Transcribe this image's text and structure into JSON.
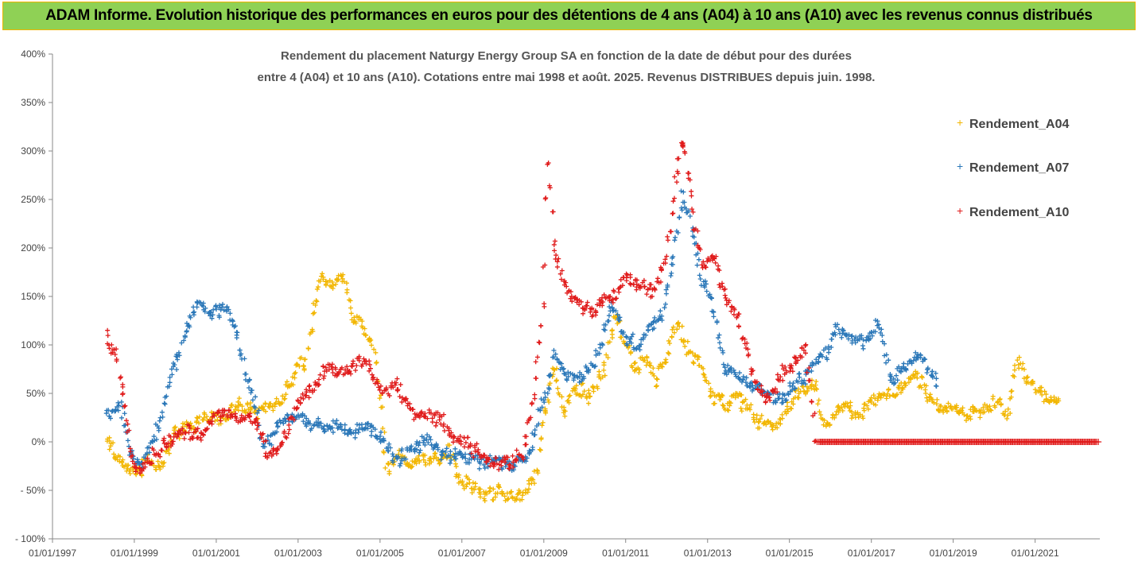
{
  "banner": {
    "title": "ADAM Informe. Evolution historique des performances en euros pour des détentions de 4 ans (A04) à 10 ans (A10) avec les revenus connus distribués"
  },
  "colors": {
    "banner_bg": "#8fd155",
    "banner_border": "#f0b400",
    "A04": "#f2b600",
    "A07": "#2a77b8",
    "A10": "#e01b1b"
  },
  "chart_data": {
    "type": "scatter",
    "title_lines": [
      "Rendement du placement Naturgy Energy Group SA en fonction de la date de début pour des durées",
      "entre 4 (A04) et 10 ans (A10). Cotations entre mai 1998 et août. 2025. Revenus DISTRIBUES depuis juin. 1998."
    ],
    "xlabel": "",
    "ylabel": "",
    "x_ticks": [
      "01/01/1997",
      "01/01/1999",
      "01/01/2001",
      "01/01/2003",
      "01/01/2005",
      "01/01/2007",
      "01/01/2009",
      "01/01/2011",
      "01/01/2013",
      "01/01/2015",
      "01/01/2017",
      "01/01/2019",
      "01/01/2021"
    ],
    "y_ticks": [
      "- 100%",
      "- 50%",
      "0%",
      "50%",
      "100%",
      "150%",
      "200%",
      "250%",
      "300%",
      "350%",
      "400%"
    ],
    "xlim": [
      "1997-01-01",
      "2022-08-01"
    ],
    "ylim": [
      -100,
      400
    ],
    "y_unit": "%",
    "grid": false,
    "legend_position": "right",
    "marker": "+",
    "series": [
      {
        "name": "Rendement_A04",
        "x_start": "1998-05-01",
        "x_end": "2021-08-15",
        "points": [
          [
            "1998-05-01",
            5
          ],
          [
            "1998-08-01",
            -20
          ],
          [
            "1998-11-01",
            -25
          ],
          [
            "1999-01-01",
            -35
          ],
          [
            "1999-05-01",
            -15
          ],
          [
            "1999-09-01",
            -25
          ],
          [
            "2000-01-01",
            10
          ],
          [
            "2000-06-01",
            15
          ],
          [
            "2001-01-01",
            25
          ],
          [
            "2001-06-01",
            35
          ],
          [
            "2002-01-01",
            30
          ],
          [
            "2002-06-01",
            40
          ],
          [
            "2002-11-01",
            60
          ],
          [
            "2003-01-01",
            85
          ],
          [
            "2003-03-01",
            70
          ],
          [
            "2003-05-01",
            120
          ],
          [
            "2003-08-01",
            170
          ],
          [
            "2003-11-01",
            160
          ],
          [
            "2004-02-01",
            175
          ],
          [
            "2004-05-01",
            130
          ],
          [
            "2004-08-01",
            115
          ],
          [
            "2004-11-01",
            100
          ],
          [
            "2005-01-01",
            40
          ],
          [
            "2005-03-01",
            -30
          ],
          [
            "2005-06-01",
            -15
          ],
          [
            "2005-09-01",
            -25
          ],
          [
            "2006-01-01",
            -20
          ],
          [
            "2006-06-01",
            -20
          ],
          [
            "2006-10-01",
            -10
          ],
          [
            "2007-01-01",
            -40
          ],
          [
            "2007-06-01",
            -50
          ],
          [
            "2007-10-01",
            -50
          ],
          [
            "2008-03-01",
            -55
          ],
          [
            "2008-08-01",
            -58
          ],
          [
            "2008-11-01",
            -30
          ],
          [
            "2009-01-01",
            25
          ],
          [
            "2009-04-01",
            80
          ],
          [
            "2009-07-01",
            30
          ],
          [
            "2009-10-01",
            60
          ],
          [
            "2010-03-01",
            40
          ],
          [
            "2010-06-01",
            70
          ],
          [
            "2010-10-01",
            125
          ],
          [
            "2011-01-01",
            100
          ],
          [
            "2011-04-01",
            80
          ],
          [
            "2011-07-01",
            85
          ],
          [
            "2011-10-01",
            60
          ],
          [
            "2012-01-01",
            90
          ],
          [
            "2012-04-01",
            120
          ],
          [
            "2012-07-01",
            100
          ],
          [
            "2012-10-01",
            85
          ],
          [
            "2013-01-01",
            60
          ],
          [
            "2013-03-01",
            45
          ],
          [
            "2013-07-01",
            40
          ],
          [
            "2013-10-01",
            50
          ],
          [
            "2014-01-01",
            30
          ],
          [
            "2014-06-01",
            20
          ],
          [
            "2014-10-01",
            15
          ],
          [
            "2015-01-01",
            40
          ],
          [
            "2015-04-01",
            50
          ],
          [
            "2015-07-01",
            55
          ],
          [
            "2015-09-01",
            60
          ],
          [
            "2015-11-01",
            20
          ],
          [
            "2016-03-01",
            30
          ],
          [
            "2016-06-01",
            35
          ],
          [
            "2016-10-01",
            20
          ],
          [
            "2017-01-01",
            40
          ],
          [
            "2017-05-01",
            45
          ],
          [
            "2017-09-01",
            50
          ],
          [
            "2018-01-01",
            65
          ],
          [
            "2018-03-01",
            60
          ],
          [
            "2018-06-01",
            45
          ],
          [
            "2018-10-01",
            30
          ],
          [
            "2019-02-01",
            35
          ],
          [
            "2019-06-01",
            30
          ],
          [
            "2019-10-01",
            35
          ],
          [
            "2020-03-01",
            40
          ],
          [
            "2020-05-01",
            20
          ],
          [
            "2020-08-01",
            90
          ],
          [
            "2020-10-01",
            70
          ],
          [
            "2021-01-01",
            55
          ],
          [
            "2021-04-01",
            45
          ],
          [
            "2021-08-15",
            50
          ]
        ]
      },
      {
        "name": "Rendement_A07",
        "x_start": "1998-05-01",
        "x_end": "2018-08-15",
        "points": [
          [
            "1998-05-01",
            25
          ],
          [
            "1998-09-01",
            40
          ],
          [
            "1998-12-01",
            -10
          ],
          [
            "1999-03-01",
            -20
          ],
          [
            "1999-06-01",
            0
          ],
          [
            "1999-10-01",
            40
          ],
          [
            "2000-01-01",
            80
          ],
          [
            "2000-05-01",
            120
          ],
          [
            "2000-08-01",
            150
          ],
          [
            "2000-10-01",
            130
          ],
          [
            "2001-01-01",
            135
          ],
          [
            "2001-04-01",
            140
          ],
          [
            "2001-07-01",
            110
          ],
          [
            "2001-10-01",
            70
          ],
          [
            "2002-01-01",
            40
          ],
          [
            "2002-03-01",
            -5
          ],
          [
            "2002-06-01",
            10
          ],
          [
            "2002-09-01",
            20
          ],
          [
            "2003-01-01",
            30
          ],
          [
            "2003-06-01",
            20
          ],
          [
            "2003-10-01",
            15
          ],
          [
            "2004-03-01",
            10
          ],
          [
            "2004-08-01",
            15
          ],
          [
            "2005-01-01",
            5
          ],
          [
            "2005-06-01",
            -20
          ],
          [
            "2005-10-01",
            -10
          ],
          [
            "2006-03-01",
            0
          ],
          [
            "2006-08-01",
            -10
          ],
          [
            "2007-01-01",
            -15
          ],
          [
            "2007-06-01",
            -20
          ],
          [
            "2007-12-01",
            -20
          ],
          [
            "2008-05-01",
            -20
          ],
          [
            "2008-09-01",
            -10
          ],
          [
            "2009-01-01",
            40
          ],
          [
            "2009-04-01",
            90
          ],
          [
            "2009-08-01",
            70
          ],
          [
            "2009-12-01",
            65
          ],
          [
            "2010-05-01",
            90
          ],
          [
            "2010-09-01",
            140
          ],
          [
            "2011-01-01",
            110
          ],
          [
            "2011-05-01",
            100
          ],
          [
            "2011-08-01",
            120
          ],
          [
            "2011-12-01",
            130
          ],
          [
            "2012-03-01",
            190
          ],
          [
            "2012-06-01",
            260
          ],
          [
            "2012-08-01",
            230
          ],
          [
            "2012-11-01",
            170
          ],
          [
            "2013-02-01",
            150
          ],
          [
            "2013-06-01",
            70
          ],
          [
            "2013-10-01",
            70
          ],
          [
            "2014-02-01",
            60
          ],
          [
            "2014-06-01",
            50
          ],
          [
            "2014-10-01",
            40
          ],
          [
            "2015-02-01",
            60
          ],
          [
            "2015-06-01",
            70
          ],
          [
            "2015-11-01",
            90
          ],
          [
            "2016-03-01",
            115
          ],
          [
            "2016-07-01",
            110
          ],
          [
            "2016-11-01",
            100
          ],
          [
            "2017-03-01",
            125
          ],
          [
            "2017-07-01",
            60
          ],
          [
            "2017-10-01",
            75
          ],
          [
            "2018-01-01",
            85
          ],
          [
            "2018-04-01",
            90
          ],
          [
            "2018-08-15",
            60
          ]
        ]
      },
      {
        "name": "Rendement_A10",
        "x_start": "1998-05-01",
        "x_end": "2022-07-01",
        "points": [
          [
            "1998-05-01",
            110
          ],
          [
            "1998-08-01",
            90
          ],
          [
            "1998-10-01",
            40
          ],
          [
            "1999-01-01",
            -30
          ],
          [
            "1999-04-01",
            -30
          ],
          [
            "1999-08-01",
            -10
          ],
          [
            "2000-01-01",
            5
          ],
          [
            "2000-05-01",
            10
          ],
          [
            "2000-09-01",
            10
          ],
          [
            "2001-01-01",
            25
          ],
          [
            "2001-06-01",
            30
          ],
          [
            "2002-01-01",
            20
          ],
          [
            "2002-04-01",
            -15
          ],
          [
            "2002-08-01",
            0
          ],
          [
            "2003-01-01",
            40
          ],
          [
            "2003-06-01",
            55
          ],
          [
            "2003-10-01",
            75
          ],
          [
            "2004-03-01",
            70
          ],
          [
            "2004-08-01",
            85
          ],
          [
            "2004-11-01",
            70
          ],
          [
            "2005-01-01",
            50
          ],
          [
            "2005-06-01",
            55
          ],
          [
            "2005-10-01",
            35
          ],
          [
            "2006-03-01",
            30
          ],
          [
            "2006-08-01",
            20
          ],
          [
            "2007-01-01",
            0
          ],
          [
            "2007-06-01",
            -10
          ],
          [
            "2007-10-01",
            -20
          ],
          [
            "2008-03-01",
            -20
          ],
          [
            "2008-07-01",
            -10
          ],
          [
            "2008-10-01",
            45
          ],
          [
            "2009-01-01",
            150
          ],
          [
            "2009-02-01",
            300
          ],
          [
            "2009-04-01",
            200
          ],
          [
            "2009-07-01",
            160
          ],
          [
            "2009-10-01",
            150
          ],
          [
            "2010-03-01",
            135
          ],
          [
            "2010-08-01",
            145
          ],
          [
            "2011-01-01",
            165
          ],
          [
            "2011-06-01",
            160
          ],
          [
            "2011-09-01",
            150
          ],
          [
            "2012-01-01",
            190
          ],
          [
            "2012-04-01",
            280
          ],
          [
            "2012-06-01",
            320
          ],
          [
            "2012-09-01",
            230
          ],
          [
            "2012-12-01",
            180
          ],
          [
            "2013-03-01",
            190
          ],
          [
            "2013-06-01",
            150
          ],
          [
            "2013-10-01",
            130
          ],
          [
            "2014-03-01",
            60
          ],
          [
            "2014-07-01",
            50
          ],
          [
            "2014-11-01",
            70
          ],
          [
            "2015-02-01",
            80
          ],
          [
            "2015-06-01",
            95
          ],
          [
            "2015-09-01",
            0
          ],
          [
            "2016-06-01",
            0
          ],
          [
            "2017-06-01",
            0
          ],
          [
            "2018-06-01",
            0
          ],
          [
            "2019-06-01",
            0
          ],
          [
            "2020-06-01",
            0
          ],
          [
            "2021-06-01",
            0
          ],
          [
            "2022-07-01",
            0
          ]
        ]
      }
    ]
  }
}
